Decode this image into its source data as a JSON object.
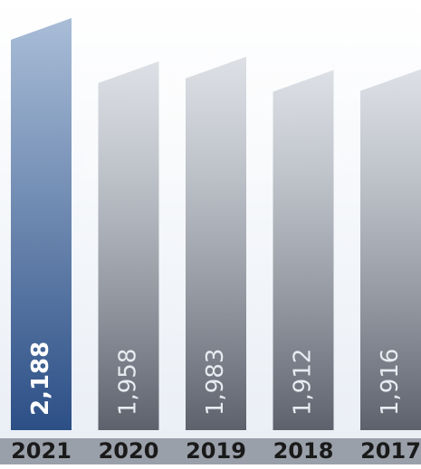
{
  "chart_data": {
    "type": "bar",
    "categories": [
      "2021",
      "2020",
      "2019",
      "2018",
      "2017"
    ],
    "values": [
      2188,
      1958,
      1983,
      1912,
      1916
    ],
    "value_labels": [
      "2,188",
      "1,958",
      "1,983",
      "1,912",
      "1,916"
    ],
    "title": "",
    "xlabel": "",
    "ylabel": "",
    "ylim": [
      0,
      2300
    ],
    "grid": false,
    "legend": "none",
    "highlight_index": 0,
    "colors": {
      "highlight_top": "#a9bdd7",
      "highlight_bottom": "#2c4f86",
      "bar_top": "#c3c8d1",
      "bar_bottom": "#555a65",
      "axis_band": "#9aa0aa",
      "label_text_highlight": "#ffffff",
      "label_text_other": "#e8ebf0",
      "category_text": "#1a1a1a",
      "bg_top": "#ffffff",
      "bg_bottom": "#e9eef5"
    }
  }
}
